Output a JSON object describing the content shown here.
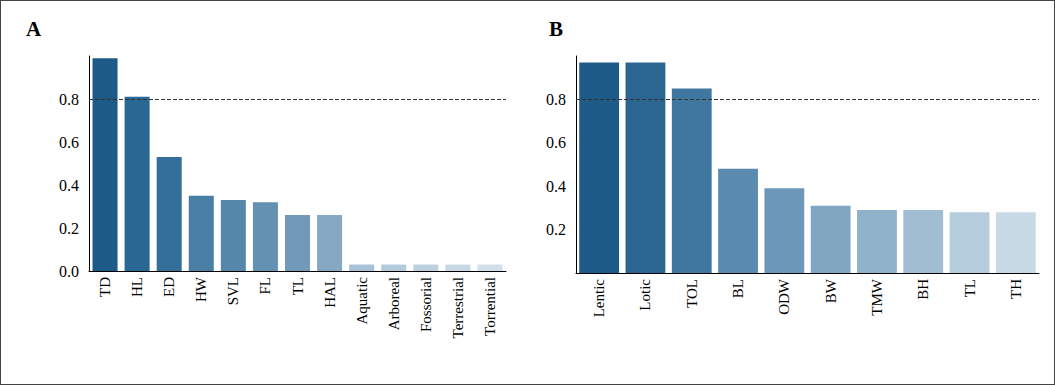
{
  "chart_data": [
    {
      "type": "bar",
      "title": "A",
      "categories": [
        "TD",
        "HL",
        "ED",
        "HW",
        "SVL",
        "FL",
        "TL",
        "HAL",
        "Aquatic",
        "Arboreal",
        "Fossorial",
        "Terrestrial",
        "Torrential"
      ],
      "values": [
        0.99,
        0.81,
        0.53,
        0.35,
        0.33,
        0.32,
        0.26,
        0.26,
        0.03,
        0.03,
        0.03,
        0.03,
        0.03
      ],
      "colors": [
        "#1d5a87",
        "#2a6792",
        "#336f99",
        "#4a7fa5",
        "#5587ab",
        "#6391b2",
        "#7199b8",
        "#86a8c2",
        "#a9c3d6",
        "#b3cadb",
        "#bcd1e0",
        "#c6d8e5",
        "#d0dfea"
      ],
      "reference_line": 0.8,
      "ylim": [
        0,
        1
      ],
      "yticks": [
        {
          "value": 0,
          "label": "0.0"
        },
        0.2,
        0.4,
        0.6,
        0.8
      ],
      "grid": false
    },
    {
      "type": "bar",
      "title": "B",
      "categories": [
        "Lentic",
        "Lotic",
        "TOL",
        "BL",
        "ODW",
        "BW",
        "TMW",
        "BH",
        "TL",
        "TH"
      ],
      "values": [
        0.97,
        0.97,
        0.85,
        0.48,
        0.39,
        0.31,
        0.29,
        0.29,
        0.28,
        0.28
      ],
      "colors": [
        "#1d5a87",
        "#2b6690",
        "#3f77a0",
        "#5a8ab0",
        "#6c97b8",
        "#80a6c2",
        "#8fb1ca",
        "#a0bdd2",
        "#b5ccdc",
        "#c8dae6"
      ],
      "reference_line": 0.8,
      "ylim": [
        0,
        1
      ],
      "yticks": [
        0.2,
        0.4,
        0.6,
        0.8
      ],
      "grid": false
    }
  ]
}
